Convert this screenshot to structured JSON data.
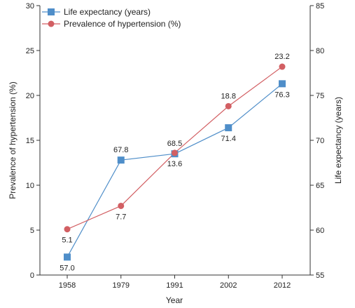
{
  "chart_data": {
    "type": "line",
    "x": [
      "1958",
      "1979",
      "1991",
      "2002",
      "2012"
    ],
    "xlabel": "Year",
    "ylabel_left": "Prevalence of hypertension (%)",
    "ylabel_right": "Life expectancy (years)",
    "ylim_left": [
      0,
      30
    ],
    "ylim_right": [
      55,
      85
    ],
    "yticks_left": [
      "0",
      "5",
      "10",
      "15",
      "20",
      "25",
      "30"
    ],
    "yticks_right": [
      "55",
      "60",
      "65",
      "70",
      "75",
      "80",
      "85"
    ],
    "legend_position": "top-left",
    "grid": false,
    "series": [
      {
        "name": "Life expectancy (years)",
        "axis": "right",
        "marker": "square",
        "color": "#4f8ec9",
        "values": [
          57.0,
          67.8,
          68.5,
          71.4,
          76.3
        ],
        "labels": [
          "57.0",
          "67.8",
          "68.5",
          "71.4",
          "76.3"
        ]
      },
      {
        "name": "Prevalence of hypertension (%)",
        "axis": "left",
        "marker": "circle",
        "color": "#d25f63",
        "values": [
          5.1,
          7.7,
          13.6,
          18.8,
          23.2
        ],
        "labels": [
          "5.1",
          "7.7",
          "13.6",
          "18.8",
          "23.2"
        ]
      }
    ]
  }
}
